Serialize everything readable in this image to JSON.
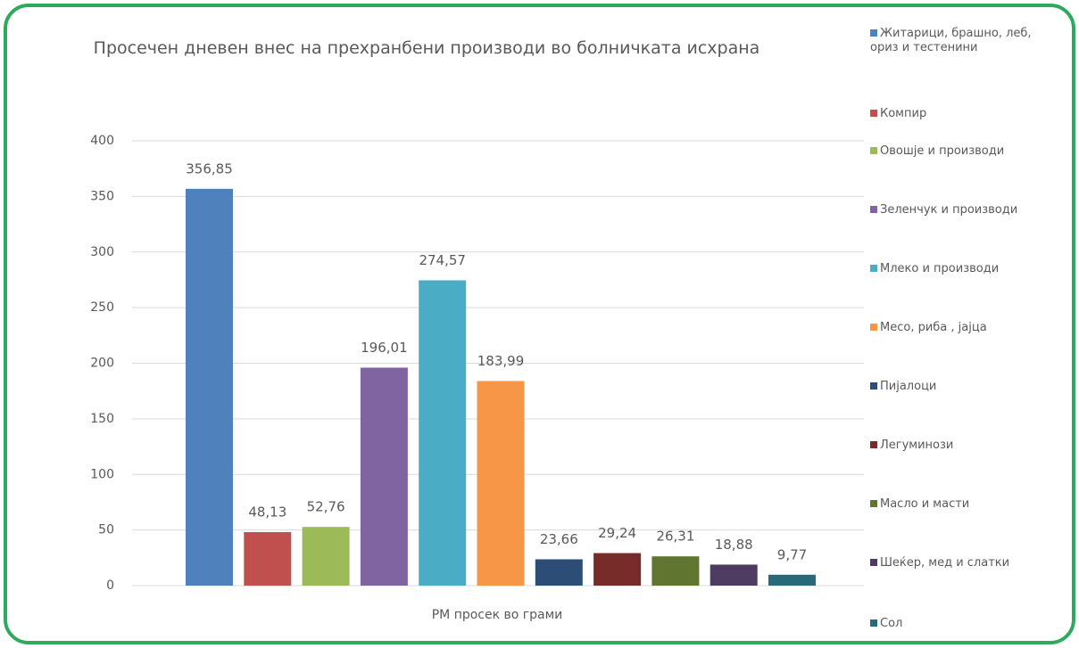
{
  "chart_data": {
    "type": "bar",
    "title": "Просечен дневен внес на прехранбени производи во болничката исхрана",
    "categories": [
      "РМ просек во грами"
    ],
    "series": [
      {
        "name": "Житарици, брашно, леб, ориз и тестенини",
        "color": "#4f81bd",
        "values": [
          356.85
        ],
        "value_labels": [
          "356,85"
        ]
      },
      {
        "name": "Компир",
        "color": "#c0504d",
        "values": [
          48.13
        ],
        "value_labels": [
          "48,13"
        ]
      },
      {
        "name": "Овошје и производи",
        "color": "#9bbb59",
        "values": [
          52.76
        ],
        "value_labels": [
          "52,76"
        ]
      },
      {
        "name": "Зеленчук и производи",
        "color": "#8064a2",
        "values": [
          196.01
        ],
        "value_labels": [
          "196,01"
        ]
      },
      {
        "name": "Млеко и производи",
        "color": "#4bacc6",
        "values": [
          274.57
        ],
        "value_labels": [
          "274,57"
        ]
      },
      {
        "name": "Месо, риба , јајца",
        "color": "#f79646",
        "values": [
          183.99
        ],
        "value_labels": [
          "183,99"
        ]
      },
      {
        "name": "Пијалоци",
        "color": "#2c4d75",
        "values": [
          23.66
        ],
        "value_labels": [
          "23,66"
        ]
      },
      {
        "name": "Легуминози",
        "color": "#772c2a",
        "values": [
          29.24
        ],
        "value_labels": [
          "29,24"
        ]
      },
      {
        "name": "Масло и масти",
        "color": "#5f7530",
        "values": [
          26.31
        ],
        "value_labels": [
          "26,31"
        ]
      },
      {
        "name": "Шеќер, мед и слатки",
        "color": "#4d3b62",
        "values": [
          18.88
        ],
        "value_labels": [
          "18,88"
        ]
      },
      {
        "name": "Сол",
        "color": "#276a7c",
        "values": [
          9.77
        ],
        "value_labels": [
          "9,77"
        ]
      }
    ],
    "ylim": [
      0,
      400
    ],
    "yticks": [
      0,
      50,
      100,
      150,
      200,
      250,
      300,
      350,
      400
    ],
    "grid": true,
    "legend": "right"
  }
}
